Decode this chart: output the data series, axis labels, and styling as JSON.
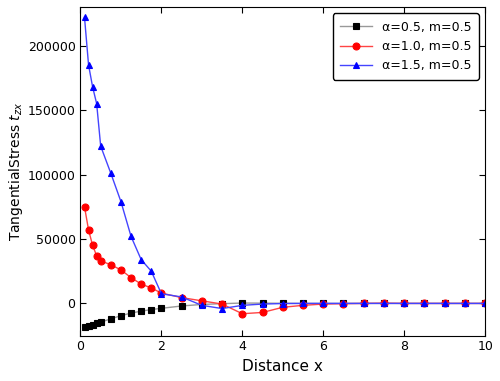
{
  "xlabel": "Distance x",
  "ylabel_text": "TangentialStress $t_{zx}$",
  "xlim": [
    0,
    10
  ],
  "ylim": [
    -25000,
    230000
  ],
  "yticks": [
    0,
    50000,
    100000,
    150000,
    200000
  ],
  "xticks": [
    0,
    2,
    4,
    6,
    8,
    10
  ],
  "series": [
    {
      "label": "α=0.5, m=0.5",
      "color": "#999999",
      "marker": "s",
      "markercolor": "black",
      "markerfacecolor": "black",
      "x": [
        0.1,
        0.2,
        0.3,
        0.4,
        0.5,
        0.75,
        1.0,
        1.25,
        1.5,
        1.75,
        2.0,
        2.5,
        3.0,
        3.5,
        4.0,
        4.5,
        5.0,
        5.5,
        6.0,
        6.5,
        7.0,
        7.5,
        8.0,
        8.5,
        9.0,
        9.5,
        10.0
      ],
      "y": [
        -18500,
        -17500,
        -16500,
        -15500,
        -14500,
        -12000,
        -9500,
        -7500,
        -6000,
        -4800,
        -3800,
        -2000,
        -800,
        -200,
        300,
        200,
        100,
        0,
        0,
        0,
        0,
        0,
        0,
        0,
        0,
        0,
        0
      ]
    },
    {
      "label": "α=1.0, m=0.5",
      "color": "#ff4444",
      "marker": "o",
      "markercolor": "red",
      "markerfacecolor": "red",
      "x": [
        0.1,
        0.2,
        0.3,
        0.4,
        0.5,
        0.75,
        1.0,
        1.25,
        1.5,
        1.75,
        2.0,
        2.5,
        3.0,
        3.5,
        4.0,
        4.5,
        5.0,
        5.5,
        6.0,
        6.5,
        7.0,
        7.5,
        8.0,
        8.5,
        9.0,
        9.5,
        10.0
      ],
      "y": [
        75000,
        57000,
        45000,
        37000,
        33000,
        30000,
        26000,
        20000,
        15000,
        12000,
        8000,
        4500,
        2000,
        -500,
        -8000,
        -7000,
        -3000,
        -1500,
        -500,
        -200,
        0,
        200,
        0,
        0,
        0,
        0,
        0
      ]
    },
    {
      "label": "α=1.5, m=0.5",
      "color": "#4444ff",
      "marker": "^",
      "markercolor": "blue",
      "markerfacecolor": "blue",
      "x": [
        0.1,
        0.2,
        0.3,
        0.4,
        0.5,
        0.75,
        1.0,
        1.25,
        1.5,
        1.75,
        2.0,
        2.5,
        3.0,
        3.5,
        4.0,
        4.5,
        5.0,
        5.5,
        6.0,
        6.5,
        7.0,
        7.5,
        8.0,
        8.5,
        9.0,
        9.5,
        10.0
      ],
      "y": [
        222000,
        185000,
        168000,
        155000,
        122000,
        101000,
        79000,
        52000,
        34000,
        25000,
        7500,
        5000,
        -1500,
        -4000,
        -1500,
        -500,
        -100,
        0,
        0,
        0,
        0,
        0,
        0,
        0,
        0,
        0,
        0
      ]
    }
  ],
  "legend_loc": "upper right",
  "figsize": [
    5.0,
    3.81
  ],
  "dpi": 100,
  "background_color": "#ffffff"
}
